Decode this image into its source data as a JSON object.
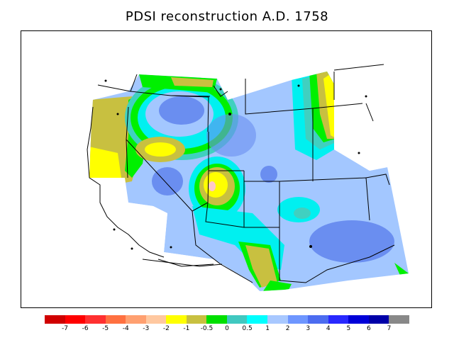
{
  "title": "PDSI reconstruction A.D. 1758",
  "colors": {
    "deep_blue": "#3a5fe0",
    "mid_blue": "#6a8ef0",
    "light_blue": "#a3c7ff",
    "cyan": "#00f0f0",
    "teal": "#40d0c0",
    "green": "#00f000",
    "olive": "#c8c040",
    "yellow": "#ffff00",
    "pink": "#ffc8c8",
    "line": "#000000"
  },
  "legend": {
    "colors": [
      "#d00000",
      "#ff0000",
      "#ff3030",
      "#ff7040",
      "#ffa070",
      "#ffc8a0",
      "#ffff00",
      "#c8c040",
      "#00e000",
      "#40c8c0",
      "#00ffff",
      "#a8c8ff",
      "#6e96ff",
      "#4c6cf0",
      "#2828ff",
      "#0000d8",
      "#0000a8",
      "#888888"
    ],
    "labels": [
      "-7",
      "-6",
      "-5",
      "-4",
      "-3",
      "-2",
      "-1",
      "-0.5",
      "0",
      "0.5",
      "1",
      "2",
      "3",
      "4",
      "5",
      "6",
      "7"
    ]
  }
}
